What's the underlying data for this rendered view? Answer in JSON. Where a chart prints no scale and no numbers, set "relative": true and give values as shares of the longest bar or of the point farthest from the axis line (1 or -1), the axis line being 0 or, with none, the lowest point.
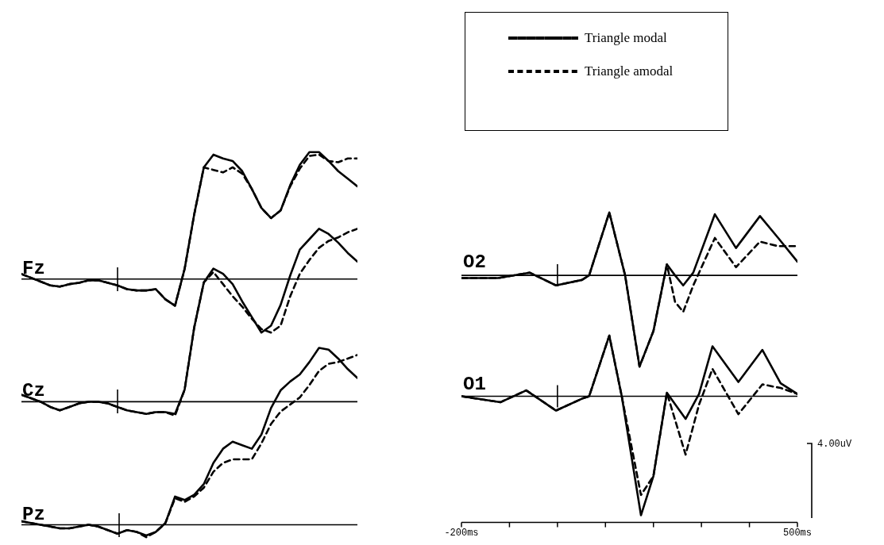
{
  "chart_data": [
    {
      "type": "line",
      "title": "Fz",
      "relative": true,
      "tick_labels": false,
      "categories": [
        null,
        null,
        null,
        null,
        null,
        null,
        null,
        null,
        null,
        null,
        null,
        null,
        null,
        null,
        null,
        null,
        null,
        null,
        null,
        null,
        null,
        null,
        null,
        null,
        null,
        null,
        null,
        null,
        null,
        null,
        null,
        null,
        null,
        null,
        null,
        null
      ],
      "series": [
        {
          "color": "#000000",
          "line_style": "solid",
          "values": [
            0.04,
            0.01,
            -0.02,
            -0.05,
            -0.06,
            -0.04,
            -0.03,
            -0.01,
            -0.01,
            -0.03,
            -0.05,
            -0.08,
            -0.09,
            -0.09,
            -0.08,
            -0.16,
            -0.21,
            0.08,
            0.51,
            0.88,
            0.98,
            0.95,
            0.93,
            0.85,
            0.71,
            0.56,
            0.48,
            0.54,
            0.74,
            0.9,
            1,
            1,
            0.93,
            0.85,
            0.79,
            0.73
          ]
        },
        {
          "color": "#000000",
          "line_style": "dashed",
          "values": [
            0.04,
            0.01,
            -0.02,
            -0.05,
            -0.06,
            -0.04,
            -0.03,
            -0.01,
            -0.01,
            -0.03,
            -0.05,
            -0.08,
            -0.09,
            -0.09,
            -0.08,
            -0.16,
            -0.21,
            0.08,
            0.51,
            0.88,
            0.86,
            0.84,
            0.88,
            0.83,
            0.71,
            0.56,
            0.48,
            0.54,
            0.73,
            0.87,
            0.97,
            0.98,
            0.93,
            0.92,
            0.95,
            0.95
          ]
        }
      ]
    },
    {
      "type": "line",
      "title": "Cz",
      "relative": true,
      "tick_labels": false,
      "categories": [
        null,
        null,
        null,
        null,
        null,
        null,
        null,
        null,
        null,
        null,
        null,
        null,
        null,
        null,
        null,
        null,
        null,
        null,
        null,
        null,
        null,
        null,
        null,
        null,
        null,
        null,
        null,
        null,
        null,
        null,
        null,
        null,
        null,
        null,
        null,
        null
      ],
      "series": [
        {
          "color": "#000000",
          "line_style": "solid",
          "values": [
            0.04,
            0.02,
            0,
            -0.03,
            -0.05,
            -0.03,
            -0.01,
            0,
            0,
            -0.01,
            -0.03,
            -0.05,
            -0.06,
            -0.07,
            -0.06,
            -0.06,
            -0.07,
            0.07,
            0.43,
            0.69,
            0.77,
            0.74,
            0.68,
            0.58,
            0.49,
            0.4,
            0.44,
            0.56,
            0.73,
            0.88,
            0.94,
            1,
            0.97,
            0.92,
            0.86,
            0.81
          ]
        },
        {
          "color": "#000000",
          "line_style": "dashed",
          "values": [
            0.04,
            0.02,
            0,
            -0.03,
            -0.05,
            -0.03,
            -0.01,
            0,
            0,
            -0.01,
            -0.03,
            -0.05,
            -0.06,
            -0.07,
            -0.06,
            -0.06,
            -0.08,
            0.07,
            0.43,
            0.69,
            0.75,
            0.68,
            0.61,
            0.55,
            0.48,
            0.42,
            0.4,
            0.44,
            0.61,
            0.74,
            0.82,
            0.89,
            0.93,
            0.95,
            0.98,
            1
          ]
        }
      ]
    },
    {
      "type": "line",
      "title": "Pz",
      "relative": true,
      "tick_labels": false,
      "categories": [
        null,
        null,
        null,
        null,
        null,
        null,
        null,
        null,
        null,
        null,
        null,
        null,
        null,
        null,
        null,
        null,
        null,
        null,
        null,
        null,
        null,
        null,
        null,
        null,
        null,
        null,
        null,
        null,
        null,
        null,
        null,
        null,
        null,
        null,
        null,
        null
      ],
      "series": [
        {
          "color": "#000000",
          "line_style": "solid",
          "values": [
            0.02,
            0.01,
            0,
            -0.01,
            -0.02,
            -0.02,
            -0.01,
            0,
            -0.01,
            -0.03,
            -0.05,
            -0.03,
            -0.04,
            -0.06,
            -0.04,
            0.01,
            0.16,
            0.14,
            0.17,
            0.23,
            0.35,
            0.43,
            0.47,
            0.45,
            0.43,
            0.51,
            0.66,
            0.76,
            0.81,
            0.85,
            0.92,
            1,
            0.99,
            0.94,
            0.88,
            0.83
          ]
        },
        {
          "color": "#000000",
          "line_style": "dashed",
          "values": [
            0.02,
            0.01,
            0,
            -0.01,
            -0.02,
            -0.02,
            -0.01,
            0,
            -0.01,
            -0.03,
            -0.05,
            -0.03,
            -0.04,
            -0.07,
            -0.04,
            0.01,
            0.15,
            0.13,
            0.16,
            0.21,
            0.3,
            0.35,
            0.37,
            0.37,
            0.37,
            0.46,
            0.57,
            0.64,
            0.68,
            0.72,
            0.79,
            0.87,
            0.91,
            0.92,
            0.94,
            0.96
          ]
        }
      ]
    },
    {
      "type": "line",
      "title": "O2",
      "relative": true,
      "xlim": [
        -200,
        500
      ],
      "tick_labels": false,
      "legend": "top",
      "ref_lines": [
        {
          "axis": "x",
          "value": 0
        }
      ],
      "x": [
        -200,
        -124,
        -58,
        -3,
        51,
        66,
        108,
        141,
        171,
        200,
        228,
        245,
        262,
        283,
        328,
        372,
        422,
        460,
        500
      ],
      "series": [
        {
          "name": "Triangle modal",
          "color": "#000000",
          "line_style": "solid",
          "values": [
            -0.03,
            -0.03,
            0.03,
            -0.11,
            -0.05,
            0,
            0.69,
            0,
            -1,
            -0.61,
            0.12,
            0,
            -0.11,
            0.03,
            0.67,
            0.3,
            0.65,
            0.41,
            0.15
          ]
        },
        {
          "name": "Triangle amodal",
          "color": "#000000",
          "line_style": "dashed",
          "values": [
            -0.03,
            -0.03,
            0.03,
            -0.11,
            -0.05,
            0,
            0.69,
            0,
            -1,
            -0.61,
            0.12,
            -0.29,
            -0.4,
            -0.11,
            0.41,
            0.09,
            0.37,
            0.32,
            0.32
          ]
        }
      ]
    },
    {
      "type": "line",
      "title": "O1",
      "relative": true,
      "xlim": [
        -200,
        500
      ],
      "xticks": [
        {
          "value": -200,
          "label": "-200ms"
        },
        {
          "value": -100,
          "label": null
        },
        {
          "value": 0,
          "label": null
        },
        {
          "value": 100,
          "label": null
        },
        {
          "value": 200,
          "label": null
        },
        {
          "value": 300,
          "label": null
        },
        {
          "value": 400,
          "label": null
        },
        {
          "value": 500,
          "label": "500ms"
        }
      ],
      "ref_lines": [
        {
          "axis": "x",
          "value": 0
        }
      ],
      "annotations": [
        "4.00uV"
      ],
      "x": [
        -200,
        -119,
        -65,
        -3,
        51,
        66,
        108,
        134,
        174,
        200,
        228,
        267,
        295,
        323,
        377,
        427,
        465,
        500
      ],
      "series": [
        {
          "color": "#000000",
          "line_style": "solid",
          "values": [
            0,
            -0.05,
            0.05,
            -0.12,
            -0.02,
            0,
            0.51,
            0,
            -1,
            -0.67,
            0.03,
            -0.19,
            0.02,
            0.42,
            0.12,
            0.39,
            0.11,
            0.02
          ]
        },
        {
          "color": "#000000",
          "line_style": "dashed",
          "values": [
            0,
            -0.05,
            0.05,
            -0.12,
            -0.02,
            0,
            0.51,
            0,
            -0.83,
            -0.67,
            0.03,
            -0.49,
            -0.07,
            0.23,
            -0.15,
            0.1,
            0.07,
            0.02
          ]
        }
      ]
    }
  ]
}
